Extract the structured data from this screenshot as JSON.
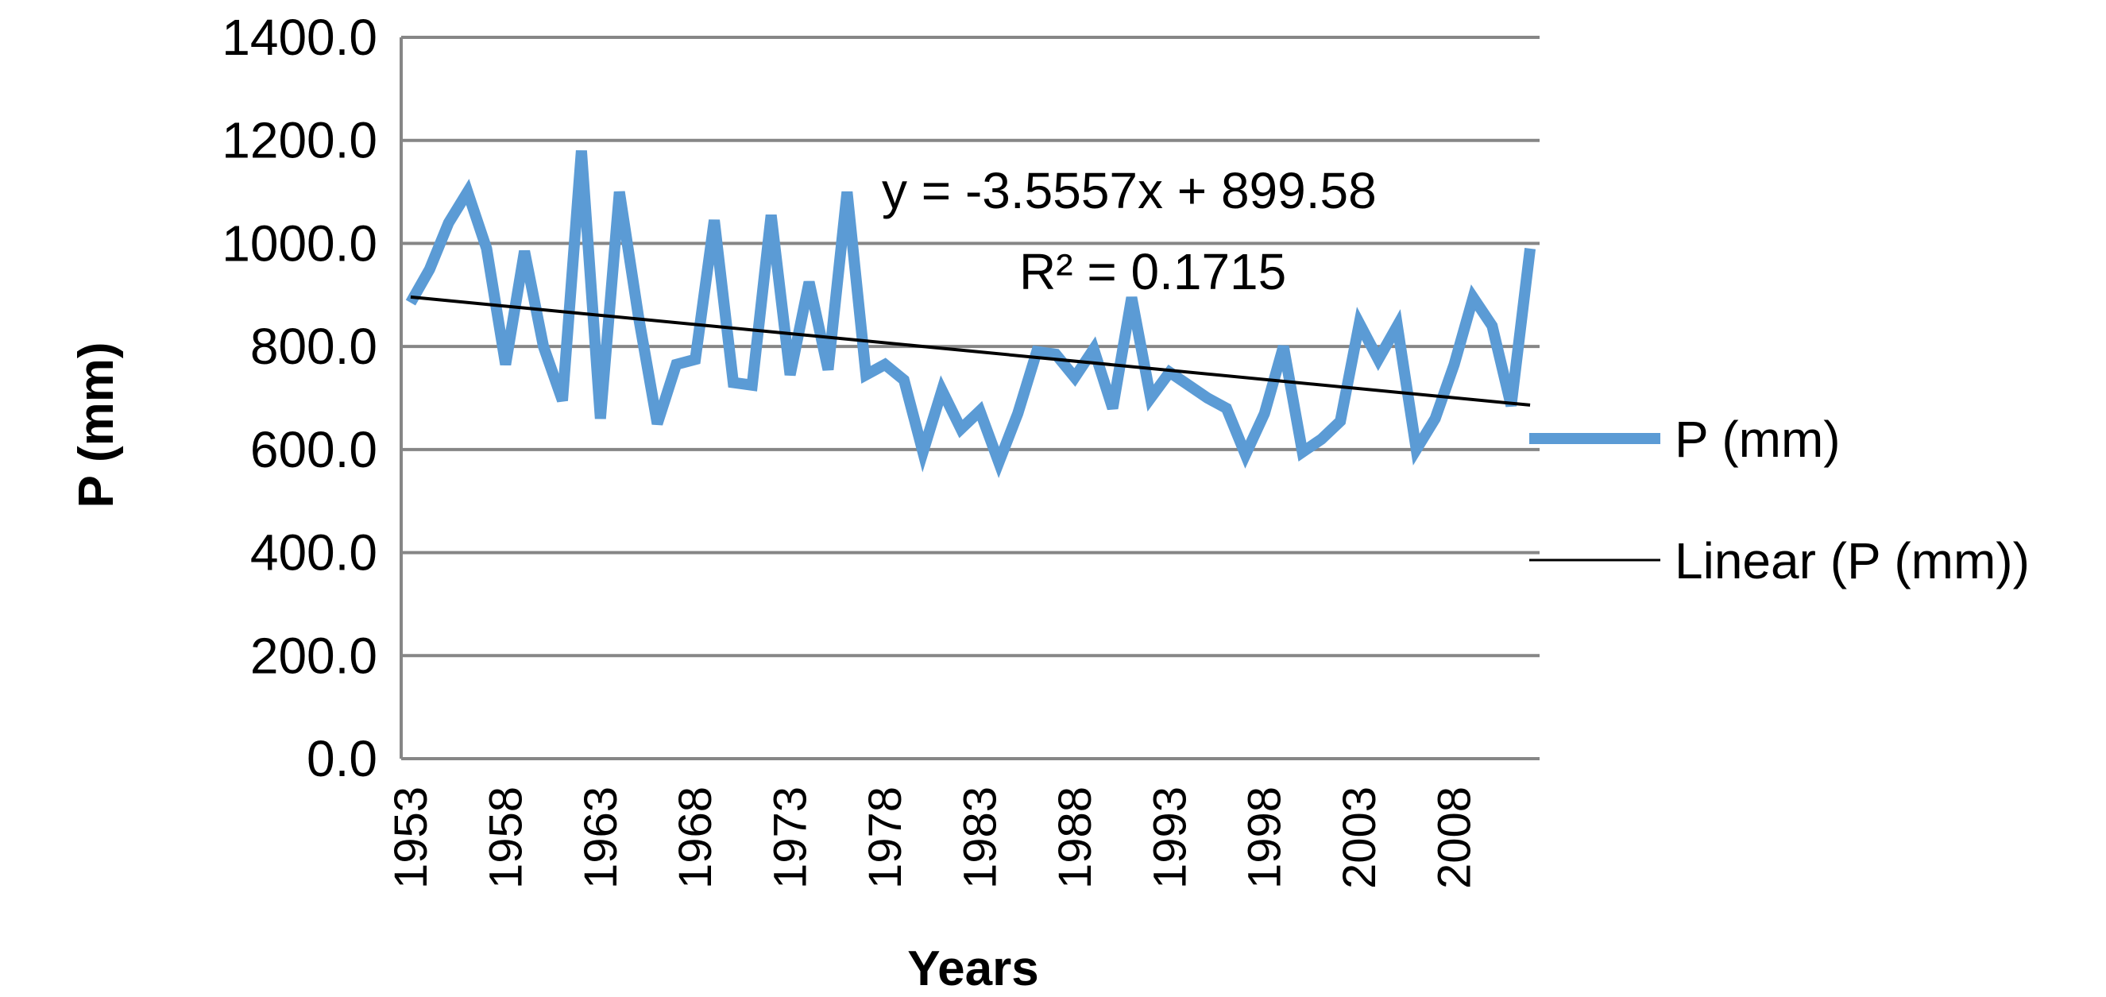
{
  "chart_data": {
    "type": "line",
    "xlabel": "Years",
    "ylabel": "P (mm)",
    "ylim": [
      0,
      1400
    ],
    "y_ticks": [
      "0.0",
      "200.0",
      "400.0",
      "600.0",
      "800.0",
      "1000.0",
      "1200.0",
      "1400.0"
    ],
    "x_tick_labels": [
      "1953",
      "1958",
      "1963",
      "1968",
      "1973",
      "1978",
      "1983",
      "1988",
      "1993",
      "1998",
      "2003",
      "2008"
    ],
    "x": [
      1953,
      1954,
      1955,
      1956,
      1957,
      1958,
      1959,
      1960,
      1961,
      1962,
      1963,
      1964,
      1965,
      1966,
      1967,
      1968,
      1969,
      1970,
      1971,
      1972,
      1973,
      1974,
      1975,
      1976,
      1977,
      1978,
      1979,
      1980,
      1981,
      1982,
      1983,
      1984,
      1985,
      1986,
      1987,
      1988,
      1989,
      1990,
      1991,
      1992,
      1993,
      1994,
      1995,
      1996,
      1997,
      1998,
      1999,
      2000,
      2001,
      2002,
      2003,
      2004,
      2005,
      2006,
      2007,
      2008,
      2009,
      2010,
      2011,
      2012
    ],
    "grid": true,
    "legend_position": "right",
    "colors": {
      "series": "#5B9BD5",
      "trend": "#000000",
      "grid": "#868686"
    },
    "series": [
      {
        "name": "P (mm)",
        "values": [
          885,
          950,
          1040,
          1100,
          990,
          765,
          985,
          800,
          695,
          1180,
          660,
          1100,
          860,
          650,
          765,
          775,
          1045,
          730,
          725,
          1055,
          745,
          925,
          755,
          1100,
          745,
          765,
          735,
          595,
          715,
          640,
          675,
          575,
          670,
          790,
          785,
          740,
          795,
          680,
          895,
          700,
          750,
          725,
          700,
          680,
          590,
          670,
          800,
          595,
          620,
          655,
          845,
          775,
          840,
          600,
          660,
          765,
          895,
          840,
          685,
          990
        ]
      }
    ],
    "trendline": {
      "name": "Linear (P (mm))",
      "slope": -3.5557,
      "intercept": 899.58,
      "equation": "y = -3.5557x + 899.58",
      "r2": "R² = 0.1715"
    }
  }
}
